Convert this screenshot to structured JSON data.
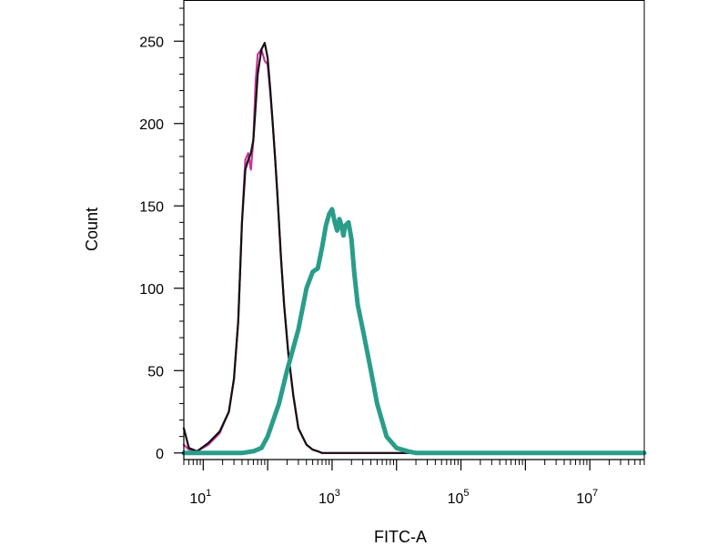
{
  "chart_data": {
    "type": "line",
    "title": "",
    "xlabel": "FITC-A",
    "ylabel": "Count",
    "x_scale": "log",
    "xlim": [
      5,
      70000000
    ],
    "ylim": [
      -4,
      275
    ],
    "grid": false,
    "legend": "none",
    "y_ticks": [
      0,
      50,
      100,
      150,
      200,
      250
    ],
    "x_ticks": [
      {
        "base": "10",
        "exp": "1",
        "value": 10
      },
      {
        "base": "10",
        "exp": "3",
        "value": 1000
      },
      {
        "base": "10",
        "exp": "5",
        "value": 100000
      },
      {
        "base": "10",
        "exp": "7",
        "value": 10000000
      }
    ],
    "series": [
      {
        "color": "#cc3399",
        "width": 2.2,
        "x": [
          5,
          6,
          8,
          12,
          18,
          25,
          30,
          35,
          40,
          45,
          50,
          55,
          60,
          65,
          70,
          80,
          90,
          100,
          110,
          120,
          130,
          140,
          150,
          160,
          180,
          210,
          250,
          300,
          400,
          500,
          600,
          700,
          800,
          1000,
          1500,
          2000,
          5000,
          10000000,
          70000000
        ],
        "y": [
          5,
          2,
          1,
          5,
          12,
          25,
          45,
          80,
          140,
          178,
          182,
          172,
          190,
          225,
          242,
          245,
          238,
          236,
          218,
          200,
          180,
          160,
          140,
          120,
          90,
          60,
          35,
          15,
          5,
          2,
          1,
          0,
          0,
          0,
          0,
          0,
          0,
          0,
          0
        ]
      },
      {
        "color": "#111111",
        "width": 2.2,
        "x": [
          5,
          6,
          8,
          12,
          18,
          25,
          30,
          35,
          40,
          45,
          50,
          55,
          60,
          65,
          70,
          80,
          90,
          100,
          110,
          120,
          130,
          140,
          150,
          160,
          180,
          210,
          250,
          300,
          400,
          500,
          600,
          700,
          800,
          1000,
          1500,
          2000,
          5000,
          10000000,
          70000000
        ],
        "y": [
          15,
          3,
          1,
          6,
          13,
          25,
          45,
          80,
          140,
          172,
          178,
          182,
          190,
          210,
          230,
          245,
          249,
          240,
          220,
          200,
          180,
          160,
          140,
          120,
          90,
          60,
          35,
          15,
          5,
          2,
          1,
          0,
          0,
          0,
          0,
          0,
          0,
          0,
          0
        ]
      },
      {
        "color": "#2a9d8a",
        "width": 5,
        "x": [
          5,
          20,
          40,
          60,
          80,
          100,
          150,
          200,
          300,
          400,
          500,
          600,
          700,
          800,
          900,
          1000,
          1100,
          1200,
          1300,
          1400,
          1500,
          1600,
          1800,
          2000,
          2200,
          2500,
          3000,
          4000,
          5000,
          7000,
          10000,
          15000,
          20000,
          10000000,
          70000000
        ],
        "y": [
          0,
          0,
          0,
          1,
          3,
          10,
          30,
          50,
          75,
          100,
          110,
          112,
          125,
          138,
          145,
          148,
          140,
          135,
          142,
          138,
          132,
          138,
          140,
          130,
          110,
          90,
          75,
          50,
          30,
          10,
          3,
          1,
          0,
          0,
          0
        ]
      }
    ]
  }
}
